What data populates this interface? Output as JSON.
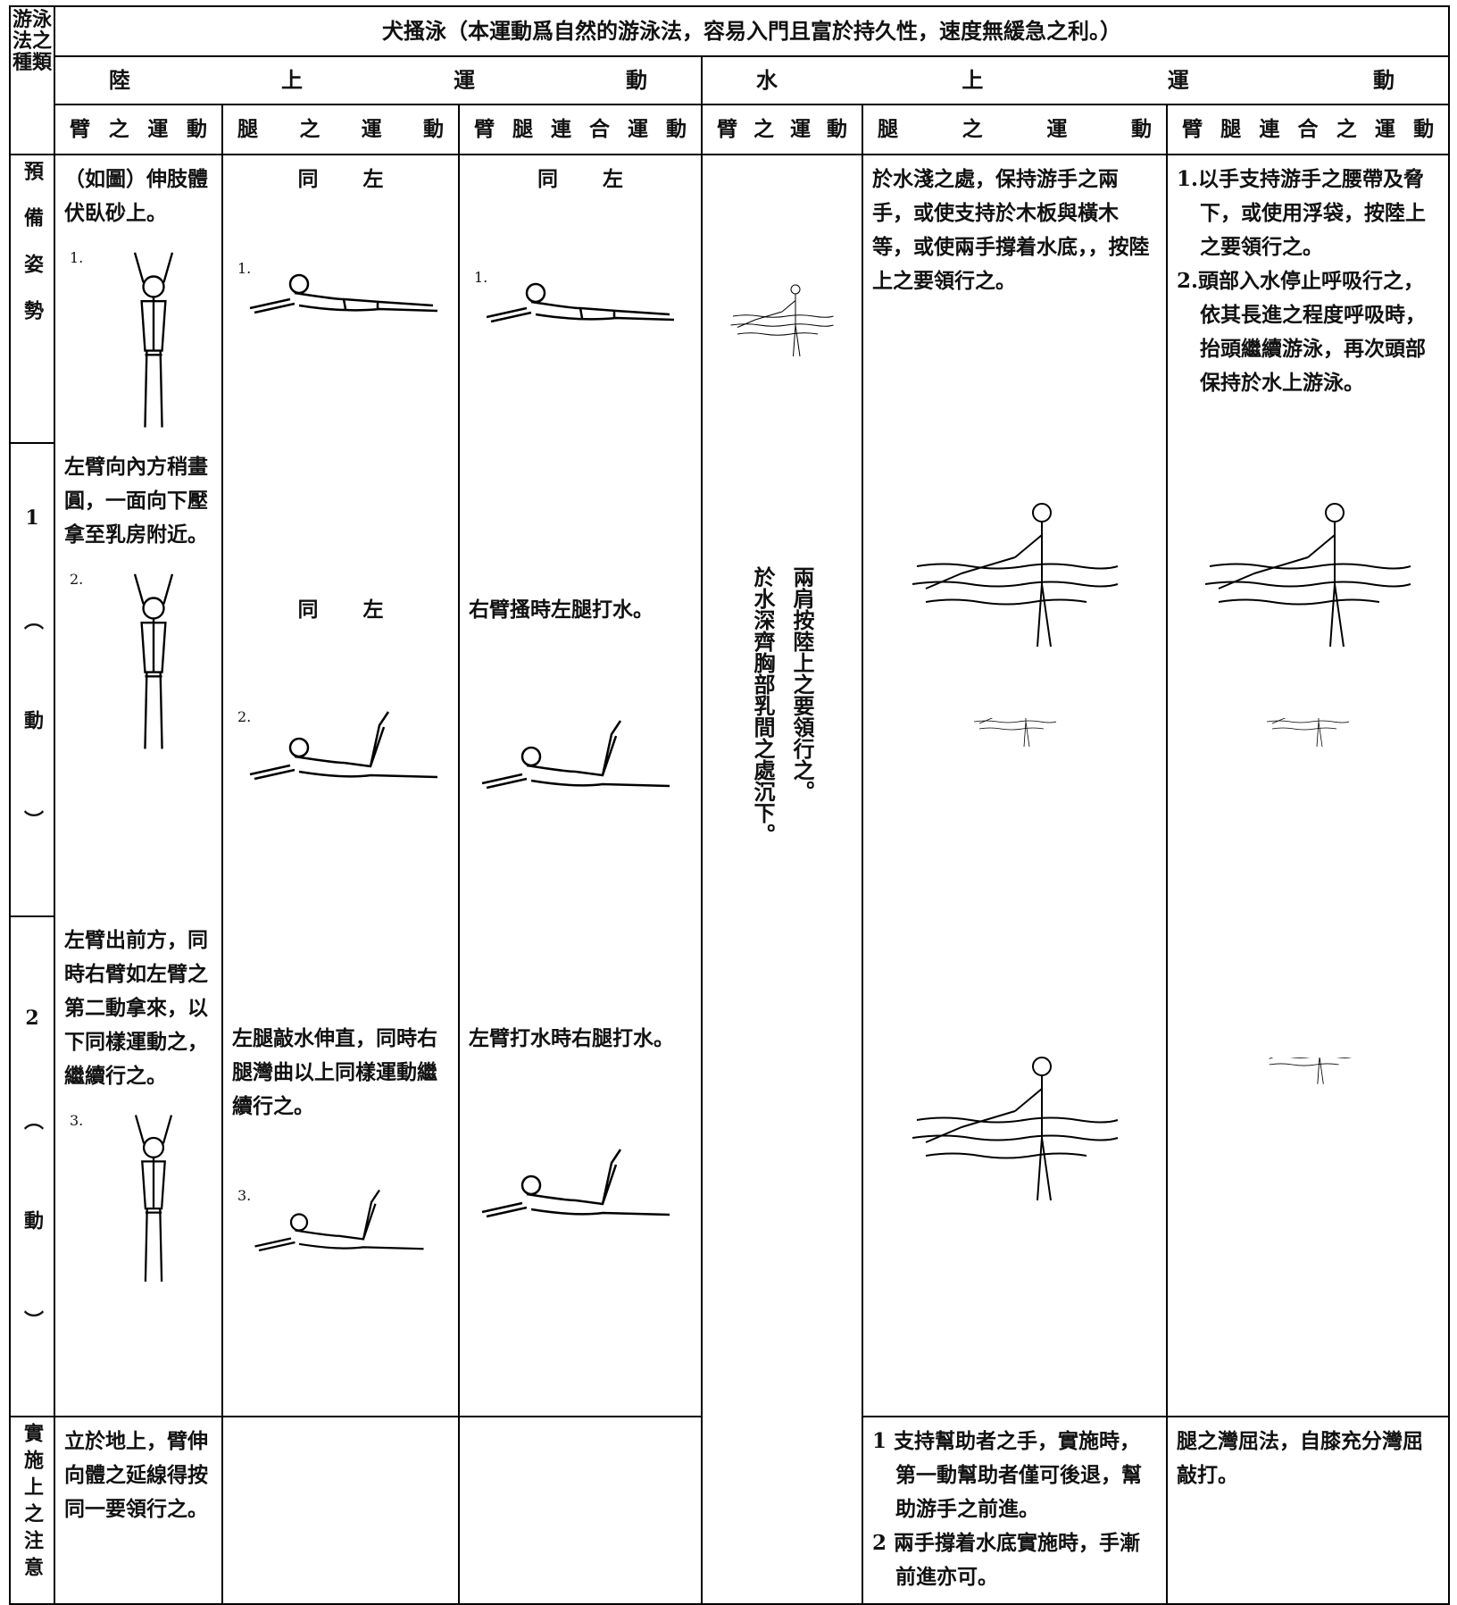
{
  "left_header": "游泳法之種類",
  "title": "犬搔泳（本運動爲自然的游泳法，容易入門且富於持久性，速度無緩急之利。）",
  "sections": [
    "陸上運動",
    "水上運動"
  ],
  "columns": [
    "臂之運動",
    "腿之運動",
    "臂腿連合運動",
    "臂之運動",
    "腿之運動",
    "臂腿連合之運動"
  ],
  "water_arm": [
    "兩肩按陸上之要領行之。",
    "於水深齊胸部乳間之處沉下。"
  ],
  "rows": [
    {
      "label": "預備姿勢",
      "land_arm": {
        "text": "（如圖）伸肢體伏臥砂上。",
        "figure": "1."
      },
      "land_leg": {
        "text": "同左",
        "figure": "1."
      },
      "land_both": {
        "text": "同左",
        "figure": "1."
      },
      "water_leg": "於水淺之處，保持游手之兩手，或使支持於木板與橫木等，或使兩手撐着水底，，按陸上之要領行之。",
      "water_both": [
        "1.以手支持游手之腰帶及脅下，或使用浮袋，按陸上之要領行之。",
        "2.頭部入水停止呼吸行之，依其長進之程度呼吸時，抬頭繼續游泳，再次頭部保持於水上游泳。"
      ]
    },
    {
      "label": "1（動）",
      "land_arm": {
        "text": "左臂向內方稍畫圓，一面向下壓拿至乳房附近。",
        "figure": "2."
      },
      "land_leg": {
        "text": "同左",
        "figure": "2."
      },
      "land_both": {
        "text": "右臂搔時左腿打水。"
      }
    },
    {
      "label": "2（動）",
      "land_arm": {
        "text": "左臂出前方，同時右臂如左臂之第二動拿來，以下同樣運動之，繼續行之。",
        "figure": "3."
      },
      "land_leg": {
        "text": "左腿敲水伸直，同時右腿灣曲以上同樣運動繼續行之。",
        "figure": "3."
      },
      "land_both": {
        "text": "左臂打水時右腿打水。"
      }
    }
  ],
  "notes": {
    "label": "實施上之注意",
    "land_arm": "立於地上，臂伸向體之延線得按同一要領行之。",
    "water_leg": [
      "1 支持幫助者之手，實施時，第一動幫助者僅可後退，幫助游手之前進。",
      "2 兩手撐着水底實施時，手漸前進亦可。"
    ],
    "water_both": "腿之灣屈法，自膝充分灣屈敲打。"
  }
}
